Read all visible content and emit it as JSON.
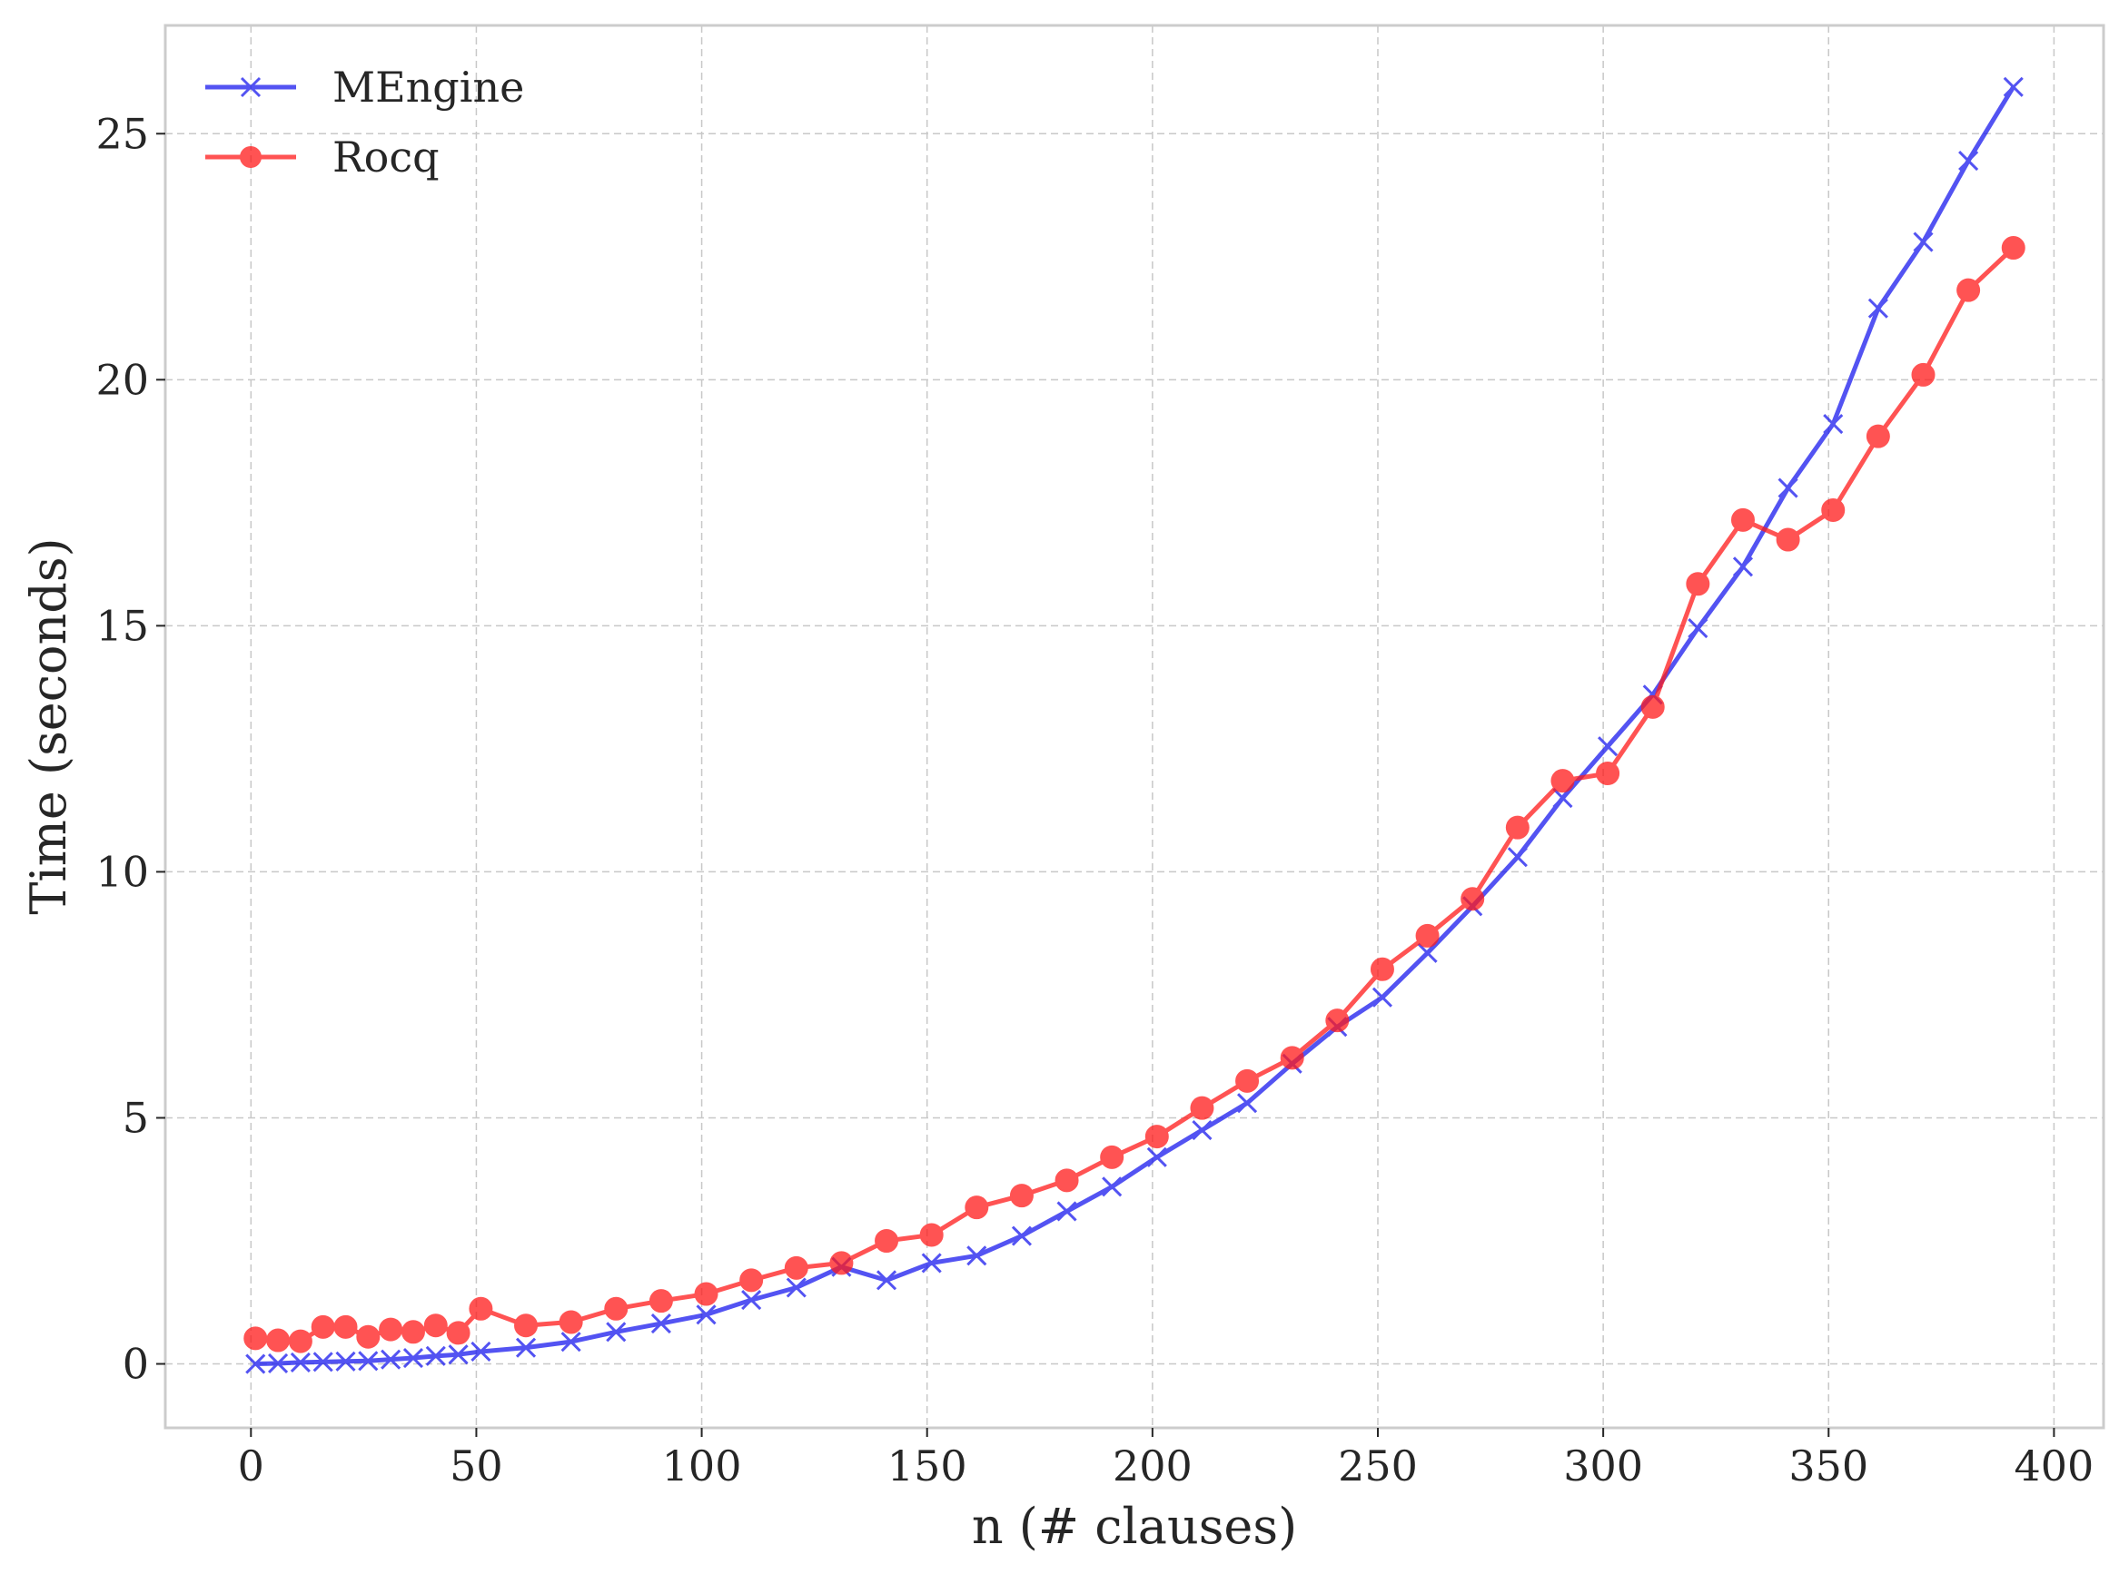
{
  "chart_data": {
    "type": "line",
    "title": "",
    "xlabel": "n (# clauses)",
    "ylabel": "Time (seconds)",
    "xlim": [
      -19,
      411
    ],
    "ylim": [
      -1.3,
      27.2
    ],
    "xticks": [
      0,
      50,
      100,
      150,
      200,
      250,
      300,
      350,
      400
    ],
    "yticks": [
      0,
      5,
      10,
      15,
      20,
      25
    ],
    "grid": true,
    "legend_position": "top-left",
    "series": [
      {
        "name": "MEngine",
        "color": "#1a1aee",
        "marker": "x",
        "x": [
          1,
          6,
          11,
          16,
          21,
          26,
          31,
          36,
          41,
          46,
          51,
          61,
          71,
          81,
          91,
          101,
          111,
          121,
          131,
          141,
          151,
          161,
          171,
          181,
          191,
          201,
          211,
          221,
          231,
          241,
          251,
          261,
          271,
          281,
          291,
          301,
          311,
          321,
          331,
          341,
          351,
          361,
          371,
          381,
          391
        ],
        "y": [
          0.0,
          0.01,
          0.03,
          0.04,
          0.05,
          0.06,
          0.09,
          0.12,
          0.16,
          0.19,
          0.25,
          0.33,
          0.45,
          0.65,
          0.82,
          1.0,
          1.3,
          1.55,
          1.97,
          1.7,
          2.05,
          2.2,
          2.6,
          3.1,
          3.6,
          4.2,
          4.75,
          5.3,
          6.1,
          6.85,
          7.45,
          8.35,
          9.3,
          10.3,
          11.5,
          12.55,
          13.6,
          14.95,
          16.2,
          17.8,
          19.1,
          21.45,
          22.8,
          24.45,
          25.95
        ]
      },
      {
        "name": "Rocq",
        "color": "#ff1a1a",
        "marker": "o",
        "x": [
          1,
          6,
          11,
          16,
          21,
          26,
          31,
          36,
          41,
          46,
          51,
          61,
          71,
          81,
          91,
          101,
          111,
          121,
          131,
          141,
          151,
          161,
          171,
          181,
          191,
          201,
          211,
          221,
          231,
          241,
          251,
          261,
          271,
          281,
          291,
          301,
          311,
          321,
          331,
          341,
          351,
          361,
          371,
          381,
          391
        ],
        "y": [
          0.52,
          0.48,
          0.46,
          0.75,
          0.75,
          0.55,
          0.7,
          0.65,
          0.78,
          0.63,
          1.12,
          0.78,
          0.85,
          1.12,
          1.28,
          1.42,
          1.7,
          1.95,
          2.05,
          2.5,
          2.62,
          3.18,
          3.42,
          3.73,
          4.2,
          4.62,
          5.2,
          5.75,
          6.22,
          6.98,
          8.02,
          8.7,
          9.45,
          10.9,
          11.85,
          12.0,
          13.35,
          15.85,
          17.15,
          16.75,
          17.35,
          18.85,
          20.1,
          21.82,
          22.68
        ]
      }
    ]
  }
}
